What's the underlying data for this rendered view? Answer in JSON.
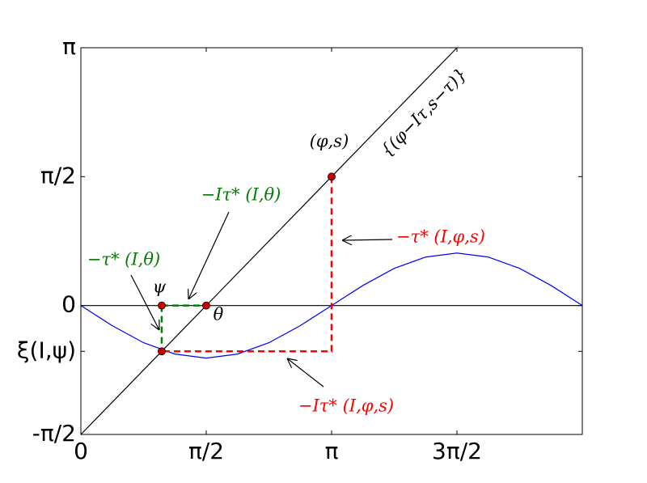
{
  "chart_data": {
    "type": "line",
    "xlim": [
      0,
      6.2832
    ],
    "ylim": [
      -1.5708,
      3.1416
    ],
    "xticks": [
      0,
      {
        "value": 1.5708,
        "label": "π/2"
      },
      {
        "value": 3.1416,
        "label": "π"
      },
      {
        "value": 4.7124,
        "label": "3π/2"
      }
    ],
    "yticks": [
      {
        "value": -1.5708,
        "label": "-π/2"
      },
      {
        "value": -0.558,
        "label": "ξ(I,ψ)"
      },
      0,
      {
        "value": 1.5708,
        "label": "π/2"
      },
      {
        "value": 3.1416,
        "label": "π"
      }
    ],
    "series": [
      {
        "color": "#000000",
        "style": "solid",
        "x": [
          0,
          6.2832
        ],
        "values": [
          0,
          0
        ]
      },
      {
        "color": "#000000",
        "style": "solid",
        "x": [
          0,
          4.7124
        ],
        "values": [
          -1.5708,
          3.1416
        ]
      },
      {
        "color": "#0000ff",
        "style": "solid",
        "x": [
          0,
          0.3927,
          0.7854,
          1.1781,
          1.5708,
          1.9635,
          2.3562,
          2.7489,
          3.1416,
          3.5343,
          3.927,
          4.3197,
          4.7124,
          5.1051,
          5.4978,
          5.8905,
          6.2832
        ],
        "values": [
          0,
          -0.245,
          -0.453,
          -0.591,
          -0.64,
          -0.591,
          -0.453,
          -0.245,
          0,
          0.245,
          0.453,
          0.591,
          0.64,
          0.591,
          0.453,
          0.245,
          0
        ]
      },
      {
        "color": "#008000",
        "style": "dashed",
        "x": [
          1.013,
          1.5708
        ],
        "values": [
          0,
          0
        ]
      },
      {
        "color": "#008000",
        "style": "dashed",
        "x": [
          1.013,
          1.013
        ],
        "values": [
          0,
          -0.558
        ]
      },
      {
        "color": "#ff0000",
        "style": "dashed",
        "x": [
          3.1416,
          3.1416,
          1.013
        ],
        "values": [
          1.5708,
          -0.558,
          -0.558
        ]
      }
    ],
    "points": {
      "color": "#cc0000",
      "x": [
        3.1416,
        1.013,
        1.5708,
        1.013
      ],
      "values": [
        1.5708,
        0,
        0,
        -0.558
      ]
    },
    "annotations": [
      {
        "text": "(φ,s)",
        "color": "#000000"
      },
      {
        "text": "{(φ−Iτ,s−τ)}",
        "color": "#000000"
      },
      {
        "text": "−Iτ* (I,θ)",
        "color": "#008000"
      },
      {
        "text": "−τ* (I,φ,s)",
        "color": "#ff0000"
      },
      {
        "text": "−τ* (I,θ)",
        "color": "#008000"
      },
      {
        "text": "ψ",
        "color": "#000000"
      },
      {
        "text": "θ",
        "color": "#000000"
      },
      {
        "text": "−Iτ* (I,φ,s)",
        "color": "#ff0000"
      }
    ]
  }
}
